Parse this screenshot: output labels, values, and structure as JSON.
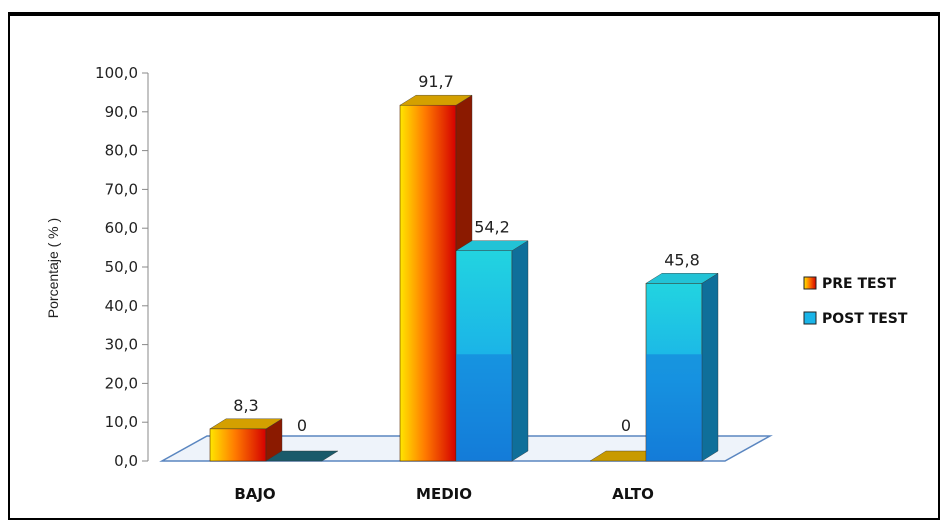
{
  "chart_data": {
    "type": "bar",
    "title": "",
    "xlabel": "",
    "ylabel": "Porcentaje ( % )",
    "ylim": [
      0,
      100
    ],
    "yticks": [
      "0,0",
      "10,0",
      "20,0",
      "30,0",
      "40,0",
      "50,0",
      "60,0",
      "70,0",
      "80,0",
      "90,0",
      "100,0"
    ],
    "categories": [
      "BAJO",
      "MEDIO",
      "ALTO"
    ],
    "series": [
      {
        "name": "PRE TEST",
        "values": [
          8.3,
          91.7,
          0
        ],
        "labels": [
          "8,3",
          "91,7",
          "0"
        ]
      },
      {
        "name": "POST TEST",
        "values": [
          0,
          54.2,
          45.8
        ],
        "labels": [
          "0",
          "54,2",
          "45,8"
        ]
      }
    ],
    "legend": "right",
    "grid": false,
    "colors": {
      "pre_front_start": "#ffe000",
      "pre_front_end": "#d40000",
      "pre_side": "#8b1a00",
      "pre_top": "#d4a000",
      "post_front": "#1ab4e8",
      "post_side": "#0f6f9a",
      "post_top": "#22c3d6"
    }
  }
}
